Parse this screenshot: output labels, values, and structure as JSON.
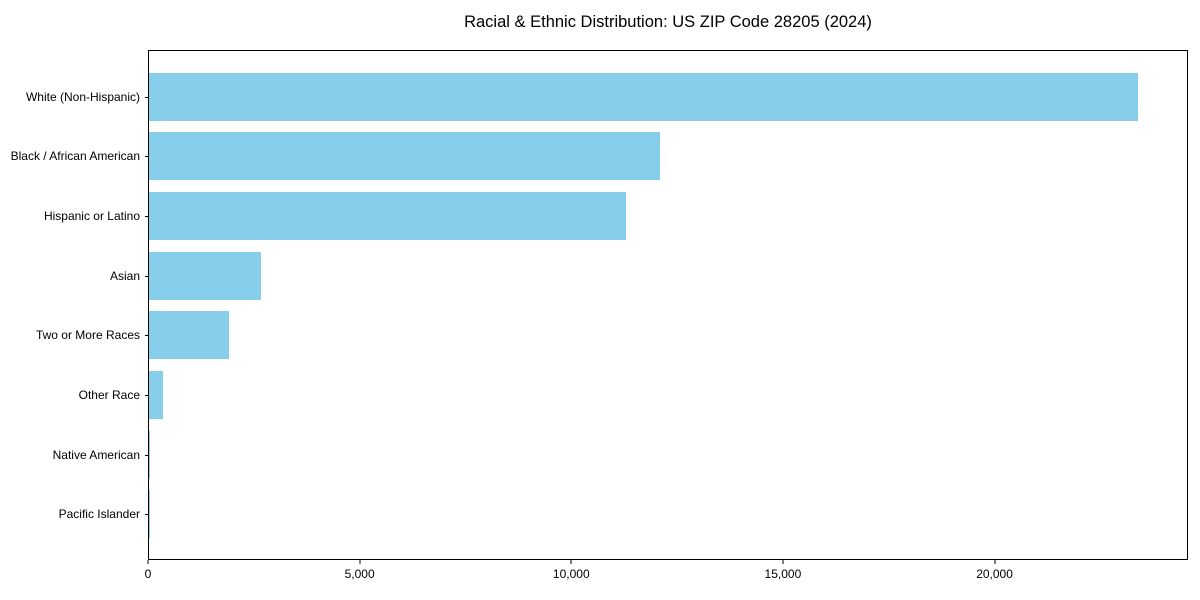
{
  "chart_data": {
    "type": "bar",
    "orientation": "horizontal",
    "title": "Racial & Ethnic Distribution: US ZIP Code 28205 (2024)",
    "categories": [
      "White (Non-Hispanic)",
      "Black / African American",
      "Hispanic or Latino",
      "Asian",
      "Two or More Races",
      "Other Race",
      "Native American",
      "Pacific Islander"
    ],
    "values": [
      23400,
      12100,
      11300,
      2650,
      1900,
      330,
      20,
      10
    ],
    "xlabel": "",
    "ylabel": "",
    "xlim": [
      0,
      24570
    ],
    "xticks": [
      0,
      5000,
      10000,
      15000,
      20000
    ],
    "xtick_labels": [
      "0",
      "5,000",
      "10,000",
      "15,000",
      "20,000"
    ],
    "bar_color": "#87CEEB",
    "background_color": "#ffffff",
    "spine_color": "#000000",
    "grid": false,
    "legend": null
  }
}
